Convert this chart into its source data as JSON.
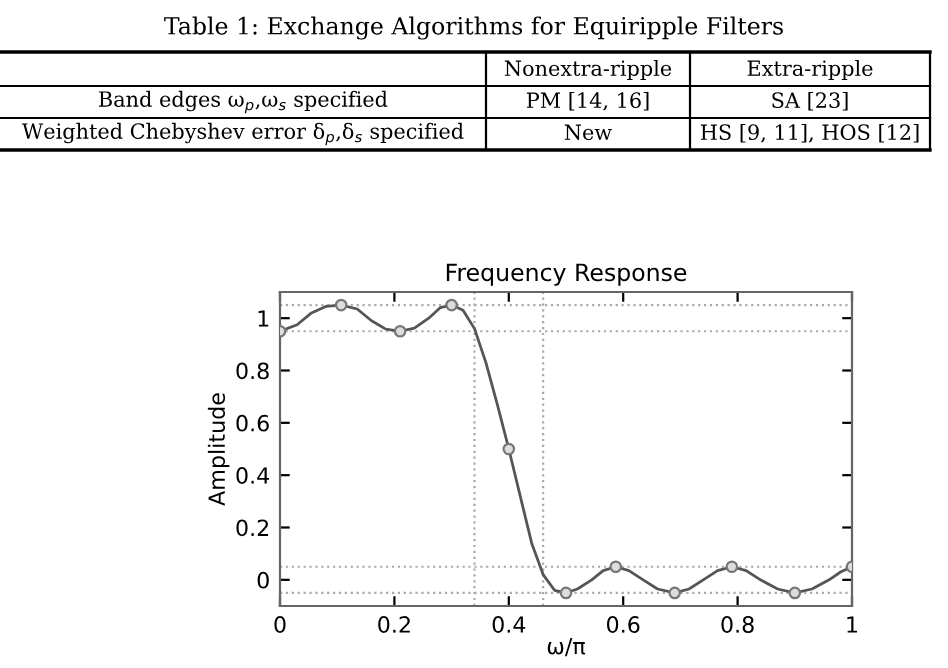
{
  "chart_data": {
    "type": "line",
    "title": "Frequency Response",
    "xlabel": "ω/π",
    "ylabel": "Amplitude",
    "xlim": [
      0,
      1
    ],
    "ylim": [
      -0.1,
      1.1
    ],
    "xticks": [
      0,
      0.2,
      0.4,
      0.6,
      0.8,
      1
    ],
    "yticks": [
      0,
      0.2,
      0.4,
      0.6,
      0.8,
      1
    ],
    "grid": false,
    "legend": false,
    "series": [
      {
        "color": "#555555",
        "marker": "none",
        "x": [
          0,
          0.03,
          0.055,
          0.08,
          0.107,
          0.135,
          0.16,
          0.185,
          0.21,
          0.235,
          0.26,
          0.28,
          0.3,
          0.32,
          0.34,
          0.36,
          0.38,
          0.4,
          0.42,
          0.44,
          0.46,
          0.48,
          0.5,
          0.52,
          0.545,
          0.565,
          0.587,
          0.61,
          0.635,
          0.66,
          0.69,
          0.715,
          0.74,
          0.765,
          0.79,
          0.815,
          0.84,
          0.87,
          0.9,
          0.93,
          0.96,
          0.98,
          1.0
        ],
        "values": [
          0.95,
          0.975,
          1.02,
          1.045,
          1.05,
          1.035,
          0.99,
          0.958,
          0.95,
          0.962,
          1.0,
          1.04,
          1.05,
          1.03,
          0.96,
          0.83,
          0.67,
          0.5,
          0.32,
          0.14,
          0.02,
          -0.04,
          -0.05,
          -0.035,
          0.0,
          0.035,
          0.05,
          0.035,
          0.0,
          -0.035,
          -0.05,
          -0.035,
          0.0,
          0.035,
          0.05,
          0.035,
          0.0,
          -0.035,
          -0.05,
          -0.035,
          0.0,
          0.03,
          0.05
        ]
      },
      {
        "type": "scatter",
        "color": "#777777",
        "marker": "circle",
        "x": [
          0,
          0.107,
          0.21,
          0.3,
          0.4,
          0.5,
          0.587,
          0.69,
          0.79,
          0.9,
          1.0
        ],
        "values": [
          0.95,
          1.05,
          0.95,
          1.05,
          0.5,
          -0.05,
          0.05,
          -0.05,
          0.05,
          -0.05,
          0.05
        ]
      }
    ],
    "ref_lines": [
      {
        "axis": "y",
        "value": 1.05,
        "line_style": "dotted",
        "color": "#aaaaaa"
      },
      {
        "axis": "y",
        "value": 0.95,
        "line_style": "dotted",
        "color": "#aaaaaa"
      },
      {
        "axis": "y",
        "value": 0.05,
        "line_style": "dotted",
        "color": "#aaaaaa"
      },
      {
        "axis": "y",
        "value": -0.05,
        "line_style": "dotted",
        "color": "#aaaaaa"
      },
      {
        "axis": "x",
        "value": 0.34,
        "line_style": "dotted",
        "color": "#aaaaaa"
      },
      {
        "axis": "x",
        "value": 0.46,
        "line_style": "dotted",
        "color": "#aaaaaa"
      }
    ],
    "annotations": [
      "Table 1: Exchange Algorithms for Equiripple Filters",
      "Nonextra-ripple",
      "Extra-ripple",
      "Band edges ω$_{p}$,ω$_{s}$ specified",
      "PM [14, 16]",
      "SA [23]",
      "Weighted Chebyshev error δ$_{p}$,δ$_{s}$ specified",
      "New",
      "HS [9, 11], HOS [12]"
    ]
  }
}
